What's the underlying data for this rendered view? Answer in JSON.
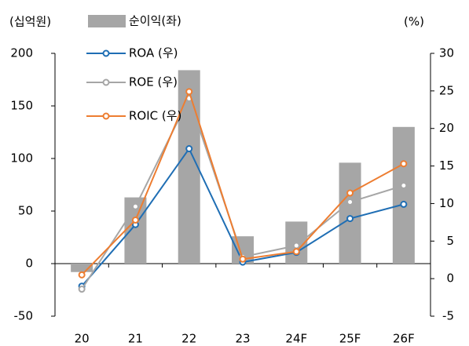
{
  "chart_data": {
    "type": "combo",
    "y_label": "(십억원)",
    "y2_label": "(%)",
    "categories": [
      "20",
      "21",
      "22",
      "23",
      "24F",
      "25F",
      "26F"
    ],
    "series": [
      {
        "name": "순이익(좌)",
        "type": "bar",
        "color": "#a6a6a6",
        "values": [
          -8,
          63,
          184,
          26,
          40,
          96,
          130
        ]
      },
      {
        "name": "ROA (우)",
        "type": "line",
        "axis": "y2",
        "color": "#1f6eb4",
        "values": [
          -1.0,
          7.2,
          17.3,
          2.2,
          3.5,
          8.0,
          9.9
        ]
      },
      {
        "name": "ROE (우)",
        "type": "line",
        "axis": "y2",
        "color": "#a6a6a6",
        "values": [
          -1.4,
          9.6,
          24.0,
          2.9,
          4.4,
          10.2,
          12.4
        ]
      },
      {
        "name": "ROIC (우)",
        "type": "line",
        "axis": "y2",
        "color": "#ed7d31",
        "values": [
          0.5,
          7.8,
          24.9,
          2.6,
          3.6,
          11.4,
          15.3
        ]
      }
    ],
    "ylim": [
      -50,
      200
    ],
    "yticks": [
      -50,
      0,
      50,
      100,
      150,
      200
    ],
    "y2lim": [
      -5,
      30
    ],
    "y2ticks": [
      -5,
      0,
      5,
      10,
      15,
      20,
      25,
      30
    ],
    "grid": false
  }
}
